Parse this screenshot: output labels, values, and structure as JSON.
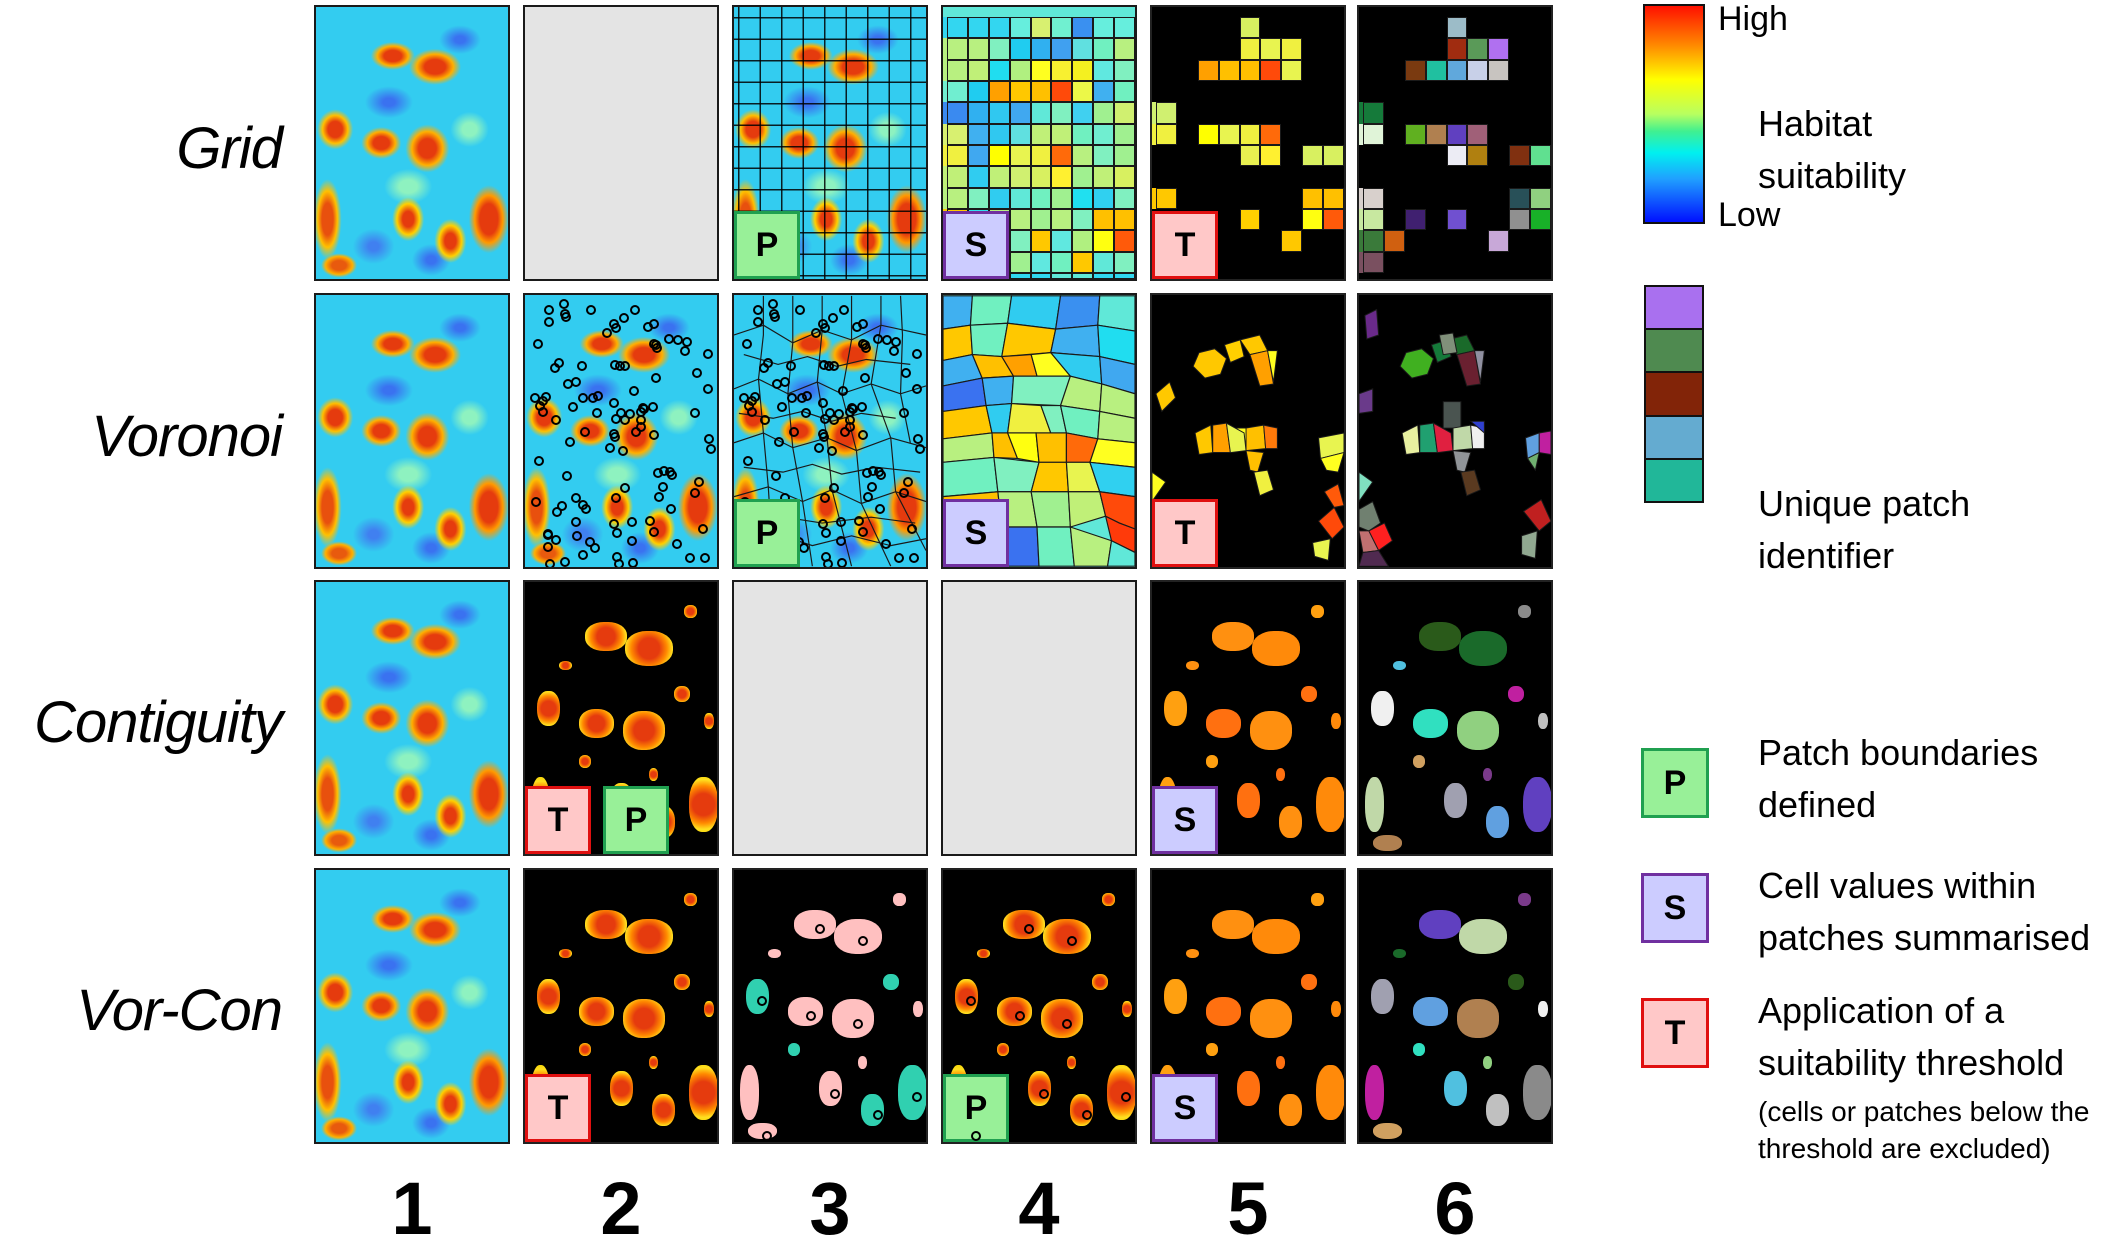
{
  "figure": {
    "row_labels": [
      "Grid",
      "Voronoi",
      "Contiguity",
      "Vor-Con"
    ],
    "column_labels": [
      "1",
      "2",
      "3",
      "4",
      "5",
      "6"
    ],
    "panels": {
      "grid": {
        "c1": {
          "type": "habitat-suitability-raster"
        },
        "c2": {
          "type": "empty"
        },
        "c3": {
          "type": "raster-with-grid-boundaries",
          "badges": [
            "P"
          ]
        },
        "c4": {
          "type": "summarised-grid-cells",
          "badges": [
            "S"
          ]
        },
        "c5": {
          "type": "thresholded-grid-cells",
          "badges": [
            "T"
          ]
        },
        "c6": {
          "type": "unique-patch-ids"
        }
      },
      "voronoi": {
        "c1": {
          "type": "habitat-suitability-raster"
        },
        "c2": {
          "type": "raster-with-voronoi-seed-points"
        },
        "c3": {
          "type": "raster-with-voronoi-polygons",
          "badges": [
            "P"
          ]
        },
        "c4": {
          "type": "summarised-voronoi-polygons",
          "badges": [
            "S"
          ]
        },
        "c5": {
          "type": "thresholded-voronoi-polygons",
          "badges": [
            "T"
          ]
        },
        "c6": {
          "type": "unique-patch-ids"
        }
      },
      "contiguity": {
        "c1": {
          "type": "habitat-suitability-raster"
        },
        "c2": {
          "type": "thresholded-contiguous-patches",
          "badges": [
            "T",
            "P"
          ]
        },
        "c3": {
          "type": "empty"
        },
        "c4": {
          "type": "empty"
        },
        "c5": {
          "type": "summarised-patches",
          "badges": [
            "S"
          ]
        },
        "c6": {
          "type": "unique-patch-ids"
        }
      },
      "vorcon": {
        "c1": {
          "type": "habitat-suitability-raster"
        },
        "c2": {
          "type": "thresholded-raster",
          "badges": [
            "T"
          ]
        },
        "c3": {
          "type": "patches-with-seed-points"
        },
        "c4": {
          "type": "raster-with-vorcon-boundaries",
          "badges": [
            "P"
          ]
        },
        "c5": {
          "type": "summarised-patches",
          "badges": [
            "S"
          ]
        },
        "c6": {
          "type": "unique-patch-ids"
        }
      }
    },
    "grid_summary_cells": {
      "cols": 9,
      "rows": 13,
      "colors": [
        "#33d6f0",
        "#33d6f0",
        "#33d6f0",
        "#66eedd",
        "#d8f070",
        "#70f0d0",
        "#3a90f0",
        "#66eedd",
        "#66eedd",
        "#b8f080",
        "#b8f080",
        "#80f0c0",
        "#20ccf0",
        "#30b0f0",
        "#40a0f0",
        "#60e0e0",
        "#70f0c0",
        "#b8f080",
        "#b8f080",
        "#c0f078",
        "#20ddf0",
        "#b0f080",
        "#ffff20",
        "#f8f030",
        "#f4f020",
        "#60e8e0",
        "#80f0c0",
        "#70eed0",
        "#20ccf0",
        "#ffa000",
        "#ffc800",
        "#ffc000",
        "#ff4a0a",
        "#ecf848",
        "#40b0f0",
        "#70f0c0",
        "#3a8af0",
        "#30b0f0",
        "#30c8f0",
        "#40a8f0",
        "#60e8d8",
        "#80f0c0",
        "#40d0f0",
        "#a0f090",
        "#d0f070",
        "#d8f070",
        "#40b0f0",
        "#30c8f0",
        "#60e0e0",
        "#c0f078",
        "#c0f078",
        "#70f0c0",
        "#70eed0",
        "#a0f090",
        "#f0f040",
        "#40a8f0",
        "#ffff00",
        "#e8f450",
        "#f0f040",
        "#ff6a0a",
        "#b8f080",
        "#80f0c0",
        "#a0f090",
        "#c0f078",
        "#30ccf0",
        "#c0f078",
        "#d0f070",
        "#d8f060",
        "#fff030",
        "#a0f090",
        "#c0f078",
        "#d8f060",
        "#b8f080",
        "#80f0c0",
        "#30ccf0",
        "#60e8d8",
        "#70f0c0",
        "#a0f090",
        "#20e0f0",
        "#30d0f0",
        "#80f0c0",
        "#ffc800",
        "#30e0f0",
        "#b8f080",
        "#b8f080",
        "#a0f090",
        "#b8f080",
        "#80f0c0",
        "#ffc000",
        "#ffc000",
        "#b8f080",
        "#b8f080",
        "#70f0c0",
        "#80f0c0",
        "#ffc800",
        "#60e8e0",
        "#b0f080",
        "#ffff10",
        "#ff5a0a",
        "#60e0e0",
        "#40a0f0",
        "#3a8af0",
        "#a0f090",
        "#60e8e0",
        "#70f0c0",
        "#ffc800",
        "#60e8d8",
        "#80f0c0",
        "#30ccf0",
        "#40a0f0",
        "#3a90f0",
        "#30d8f0",
        "#30d8f0",
        "#60e8d8",
        "#60e8d8",
        "#30d8f0",
        "#30d8f0"
      ]
    },
    "grid_threshold_cells": {
      "cols": 9,
      "rows": 13,
      "colors": [
        "",
        "",
        "",
        "",
        "#d8f060",
        "",
        "",
        "",
        "",
        "",
        "",
        "",
        "",
        "#f0f040",
        "#e8f450",
        "#f0f040",
        "",
        "",
        "",
        "",
        "#ffa000",
        "#ffc000",
        "#ffc000",
        "#ff4a0a",
        "#e8f450",
        "",
        "",
        "",
        "",
        "",
        "",
        "",
        "",
        "",
        "",
        "",
        "#d0f070",
        "",
        "",
        "",
        "",
        "",
        "",
        "",
        "",
        "#f0f040",
        "",
        "#ffff00",
        "#e8f450",
        "#f0f040",
        "#ff6a0a",
        "",
        "",
        "",
        "",
        "",
        "",
        "",
        "#e8f050",
        "#fff030",
        "",
        "#d8f060",
        "#d8f060",
        "",
        "",
        "",
        "",
        "",
        "",
        "",
        "",
        "",
        "#ffc800",
        "",
        "",
        "",
        "",
        "",
        "",
        "#ffc000",
        "#ffc000",
        "",
        "",
        "",
        "",
        "#ffd000",
        "",
        "",
        "#ffff10",
        "#ff5a0a",
        "",
        "",
        "",
        "",
        "",
        "",
        "#ffc800",
        "",
        "",
        "",
        "",
        "",
        "",
        "",
        "",
        "",
        "",
        "",
        "",
        "",
        "",
        "",
        "",
        "",
        "",
        "",
        ""
      ]
    },
    "grid_patch_id_cells": {
      "cols": 9,
      "rows": 13,
      "colors": [
        "",
        "",
        "",
        "",
        "#9cbcc8",
        "",
        "",
        "",
        "",
        "",
        "",
        "",
        "",
        "#a02c10",
        "#5a9a58",
        "#b070f0",
        "",
        "",
        "",
        "",
        "#7a3a10",
        "#20c0a0",
        "#60a8dc",
        "#c8d0e8",
        "#c8c4c0",
        "",
        "",
        "",
        "",
        "",
        "",
        "",
        "",
        "",
        "",
        "",
        "#157a3a",
        "",
        "",
        "",
        "",
        "",
        "",
        "",
        "",
        "#e0f4d8",
        "",
        "#60b020",
        "#b08050",
        "#6040c0",
        "#a06078",
        "",
        "",
        "",
        "",
        "",
        "",
        "",
        "#ececf4",
        "#b08010",
        "",
        "#803010",
        "#60e090",
        "",
        "",
        "",
        "",
        "",
        "",
        "",
        "",
        "",
        "#d8d0cc",
        "",
        "",
        "",
        "",
        "",
        "",
        "#285058",
        "#90d080",
        "#c8e8a0",
        "",
        "#402070",
        "",
        "#7050d0",
        "",
        "",
        "#909090",
        "#18b028",
        "#3a7a3a",
        "#d06010",
        "",
        "",
        "",
        "",
        "#c8a8d8",
        "",
        "",
        "#7a5060",
        "",
        "",
        "",
        "",
        "",
        "",
        "",
        "",
        "",
        "",
        "",
        "",
        "",
        "",
        "",
        "",
        ""
      ]
    }
  },
  "legend": {
    "colorbar": {
      "high_label": "High",
      "low_label": "Low",
      "title_line1": "Habitat",
      "title_line2": "suitability",
      "colors": [
        "#ff1000",
        "#ff8800",
        "#ffff00",
        "#b8ff60",
        "#40f090",
        "#00f0f0",
        "#20a0ff",
        "#0010ff"
      ]
    },
    "patch_ids": {
      "title_line1": "Unique patch",
      "title_line2": "identifier",
      "swatches": [
        "#a970ef",
        "#4f8a50",
        "#822408",
        "#64abd0",
        "#21b799"
      ]
    },
    "badges": [
      {
        "letter": "P",
        "line1": "Patch boundaries",
        "line2": "defined",
        "fill": "#98f098",
        "border": "#20a050"
      },
      {
        "letter": "S",
        "line1": "Cell values within",
        "line2": "patches summarised",
        "fill": "#ccccff",
        "border": "#7030a0"
      },
      {
        "letter": "T",
        "line1": "Application of a",
        "line2": "suitability threshold",
        "fill": "#ffc8c8",
        "border": "#e01010",
        "note_line1": "(cells or patches below the",
        "note_line2": "threshold are excluded)"
      }
    ]
  }
}
